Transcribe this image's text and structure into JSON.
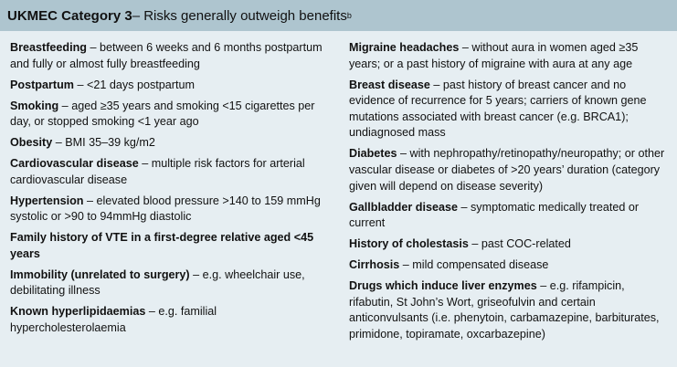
{
  "header": {
    "category": "UKMEC Category 3",
    "subtitle": " – Risks generally outweigh benefits",
    "footnote": "b"
  },
  "left_items": [
    {
      "term": "Breastfeeding",
      "text": " – between 6 weeks and 6 months postpartum and fully or almost fully breastfeeding"
    },
    {
      "term": "Postpartum",
      "text": " – <21 days postpartum"
    },
    {
      "term": "Smoking",
      "text": " – aged ≥35 years and smoking <15 cigarettes per day, or stopped smoking <1 year ago"
    },
    {
      "term": "Obesity",
      "text": " – BMI 35–39 kg/m2"
    },
    {
      "term": "Cardiovascular disease",
      "text": " – multiple risk factors for arterial cardiovascular disease"
    },
    {
      "term": "Hypertension",
      "text": " – elevated blood pressure >140 to 159 mmHg systolic or >90 to 94mmHg diastolic"
    },
    {
      "term": "Family history of VTE in a first-degree relative aged <45 years",
      "text": ""
    },
    {
      "term": "Immobility (unrelated to surgery)",
      "text": " – e.g. wheelchair use, debilitating illness"
    },
    {
      "term": "Known hyperlipidaemias",
      "text": " – e.g. familial hypercholesterolaemia"
    }
  ],
  "right_items": [
    {
      "term": "Migraine headaches",
      "text": " – without aura in women aged ≥35 years; or a past history of migraine with aura at any age"
    },
    {
      "term": "Breast disease",
      "text": " – past history of breast cancer and no evidence of recurrence for 5 years; carriers of known gene mutations associated with breast cancer (e.g. BRCA1); undiagnosed mass"
    },
    {
      "term": "Diabetes",
      "text": " – with nephropathy/retinopathy/neuropathy; or other vascular disease or diabetes of >20 years’ duration (category given will depend on disease severity)"
    },
    {
      "term": "Gallbladder disease",
      "text": " – symptomatic medically treated or current"
    },
    {
      "term": "History of cholestasis",
      "text": " – past COC-related"
    },
    {
      "term": "Cirrhosis",
      "text": " – mild compensated disease"
    },
    {
      "term": "Drugs which induce liver enzymes",
      "text": " – e.g. rifampicin, rifabutin, St John’s Wort, griseofulvin and certain anticonvulsants (i.e. phenytoin, carbamazepine, barbiturates, primidone, topiramate, oxcarbazepine)"
    }
  ]
}
